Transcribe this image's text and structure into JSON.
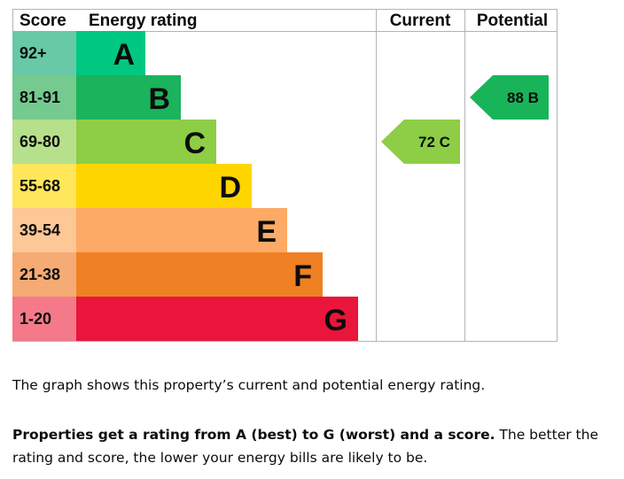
{
  "chart_data": {
    "type": "bar",
    "headers": {
      "score": "Score",
      "rating": "Energy rating",
      "current": "Current",
      "potential": "Potential"
    },
    "bands": [
      {
        "score_range": "92+",
        "letter": "A",
        "color": "#008054",
        "score_color": "#67c9a6",
        "bar_color": "#00c781"
      },
      {
        "score_range": "81-91",
        "letter": "B",
        "color": "#19b459",
        "score_color": "#74ca8f",
        "bar_color": "#1bb35b"
      },
      {
        "score_range": "69-80",
        "letter": "C",
        "color": "#8dce46",
        "score_color": "#b7e08c",
        "bar_color": "#8dce46"
      },
      {
        "score_range": "55-68",
        "letter": "D",
        "color": "#ffd500",
        "score_color": "#ffe65a",
        "bar_color": "#ffd500"
      },
      {
        "score_range": "39-54",
        "letter": "E",
        "color": "#fcaa65",
        "score_color": "#fdc796",
        "bar_color": "#fcaa65"
      },
      {
        "score_range": "21-38",
        "letter": "F",
        "color": "#ef8023",
        "score_color": "#f5ab73",
        "bar_color": "#ef8023"
      },
      {
        "score_range": "1-20",
        "letter": "G",
        "color": "#e9153b",
        "score_color": "#f47a8a",
        "bar_color": "#e9153b"
      }
    ],
    "current": {
      "score": 72,
      "letter": "C",
      "label": "72  C",
      "color": "#8dce46"
    },
    "potential": {
      "score": 88,
      "letter": "B",
      "label": "88  B",
      "color": "#19b459"
    }
  },
  "description": {
    "line1": "The graph shows this property’s current and potential energy rating.",
    "bold": "Properties get a rating from A (best) to G (worst) and a score.",
    "rest": " The better the rating and score, the lower your energy bills are likely to be."
  }
}
